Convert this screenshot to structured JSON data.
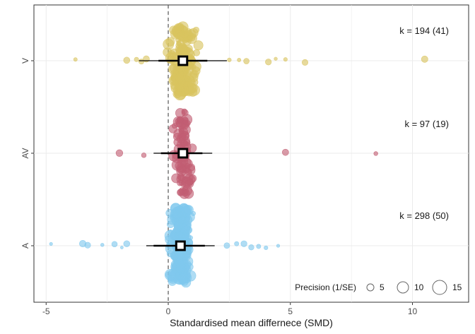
{
  "chart_data": {
    "type": "scatter",
    "subtype": "orchard-plot",
    "xlabel": "Standardised mean differnece (SMD)",
    "ylabel": "",
    "xlim": [
      -5.5,
      12.3
    ],
    "x_ticks": [
      -5,
      0,
      5,
      10
    ],
    "x_tick_labels": [
      "-5",
      "0",
      "5",
      "10"
    ],
    "categories": [
      "V",
      "AV",
      "A"
    ],
    "reference_line": 0,
    "grid": true,
    "series": [
      {
        "name": "V",
        "color": "#d9c45f",
        "mean": 0.6,
        "ci": [
          -0.4,
          1.6
        ],
        "pi": [
          -1.2,
          2.4
        ],
        "k_label": "k = 194 (41)",
        "k": 194,
        "studies": 41,
        "outliers": [
          -3.8,
          -1.7,
          -1.3,
          -1.1,
          -0.9,
          2.5,
          2.9,
          3.2,
          4.1,
          4.4,
          4.8,
          5.6,
          10.5
        ],
        "n_points": 194
      },
      {
        "name": "AV",
        "color": "#c25e73",
        "mean": 0.6,
        "ci": [
          -0.3,
          1.4
        ],
        "pi": [
          -0.6,
          1.8
        ],
        "k_label": "k = 97 (19)",
        "k": 97,
        "studies": 19,
        "outliers": [
          -2.0,
          -1.0,
          4.8,
          8.5
        ],
        "n_points": 97
      },
      {
        "name": "A",
        "color": "#7fc8ed",
        "mean": 0.5,
        "ci": [
          -0.6,
          1.5
        ],
        "pi": [
          -0.9,
          1.9
        ],
        "k_label": "k = 298 (50)",
        "k": 298,
        "studies": 50,
        "outliers": [
          -4.8,
          -3.5,
          -3.3,
          -2.7,
          -2.2,
          -1.9,
          -1.7,
          2.4,
          2.8,
          3.1,
          3.4,
          3.7,
          4.0,
          4.5
        ],
        "n_points": 298
      }
    ],
    "legend": {
      "title": "Precision (1/SE)",
      "sizes": [
        5,
        10,
        15
      ],
      "labels": [
        "5",
        "10",
        "15"
      ],
      "placement": "bottom-right"
    }
  }
}
